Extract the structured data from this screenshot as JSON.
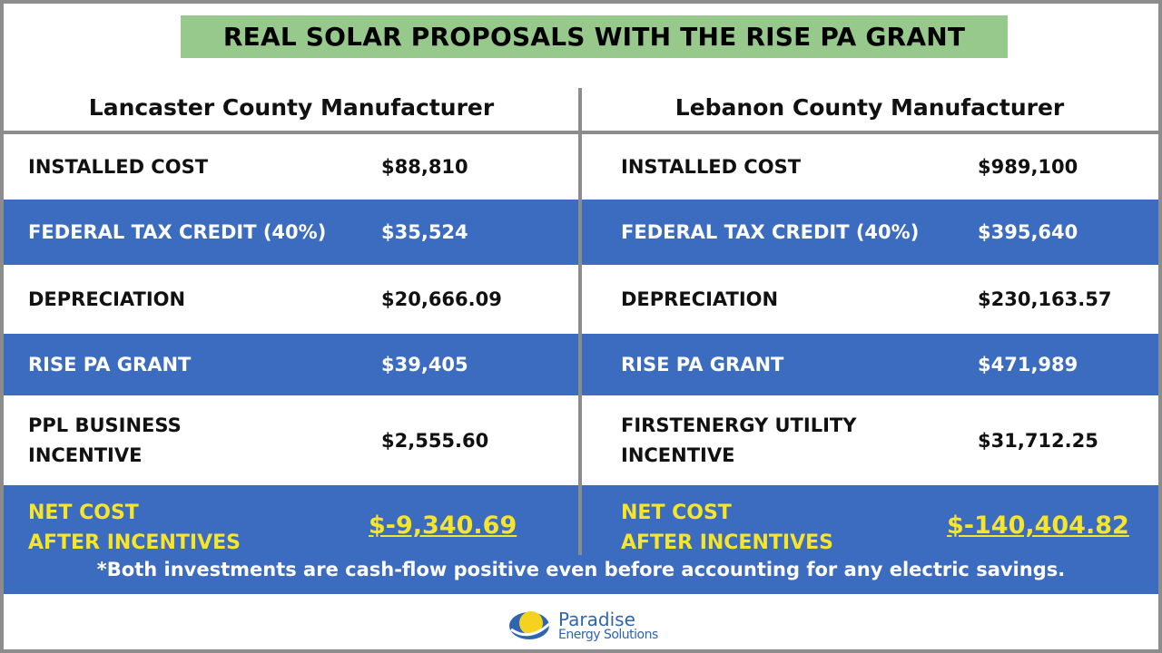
{
  "header": {
    "title": "REAL SOLAR PROPOSALS WITH THE RISE PA GRANT"
  },
  "columns": [
    {
      "heading": "Lancaster County Manufacturer",
      "rows": [
        {
          "label": "INSTALLED COST",
          "value": "$88,810"
        },
        {
          "label": "FEDERAL TAX CREDIT (40%)",
          "value": "$35,524"
        },
        {
          "label": "DEPRECIATION",
          "value": "$20,666.09"
        },
        {
          "label": "RISE PA GRANT",
          "value": "$39,405"
        },
        {
          "label": "PPL BUSINESS INCENTIVE",
          "value": "$2,555.60"
        }
      ],
      "net": {
        "label_lines": [
          "NET COST",
          "AFTER INCENTIVES"
        ],
        "value": "$-9,340.69"
      }
    },
    {
      "heading": "Lebanon County Manufacturer",
      "rows": [
        {
          "label": "INSTALLED COST",
          "value": "$989,100"
        },
        {
          "label": "FEDERAL TAX CREDIT (40%)",
          "value": "$395,640"
        },
        {
          "label": "DEPRECIATION",
          "value": "$230,163.57"
        },
        {
          "label": "RISE PA GRANT",
          "value": "$471,989"
        },
        {
          "label": "FIRSTENERGY UTILITY INCENTIVE",
          "value": "$31,712.25"
        }
      ],
      "net": {
        "label_lines": [
          "NET COST",
          "AFTER INCENTIVES"
        ],
        "value": "$-140,404.82"
      }
    }
  ],
  "footnote": "*Both investments are cash-flow positive even before accounting for any electric savings.",
  "logo": {
    "name": "Paradise",
    "tagline": "Energy Solutions"
  }
}
